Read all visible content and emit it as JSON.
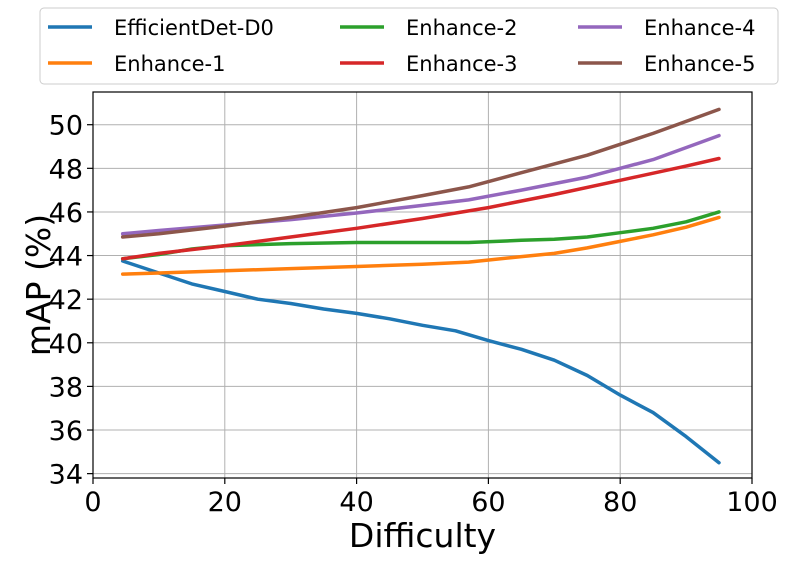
{
  "chart_data": {
    "type": "line",
    "title": "",
    "xlabel": "Difficulty",
    "ylabel": "mAP (%)",
    "xlim": [
      0,
      100
    ],
    "ylim": [
      33.8,
      51.5
    ],
    "xticks": [
      0,
      20,
      40,
      60,
      80,
      100
    ],
    "yticks": [
      34,
      36,
      38,
      40,
      42,
      44,
      46,
      48,
      50
    ],
    "grid": true,
    "legend_position": "top",
    "series": [
      {
        "name": "EfficientDet-D0",
        "color": "#1f77b4",
        "x": [
          4.5,
          10,
          15,
          20,
          25,
          30,
          35,
          40,
          45,
          50,
          55,
          60,
          65,
          70,
          75,
          80,
          85,
          90,
          95
        ],
        "y": [
          43.75,
          43.2,
          42.7,
          42.35,
          42.0,
          41.8,
          41.55,
          41.35,
          41.1,
          40.8,
          40.55,
          40.1,
          39.7,
          39.2,
          38.5,
          37.6,
          36.8,
          35.7,
          34.5
        ]
      },
      {
        "name": "Enhance-1",
        "color": "#ff7f0e",
        "x": [
          4.5,
          10,
          20,
          30,
          40,
          50,
          57,
          65,
          70,
          75,
          80,
          85,
          90,
          95
        ],
        "y": [
          43.15,
          43.2,
          43.3,
          43.4,
          43.5,
          43.6,
          43.7,
          43.95,
          44.1,
          44.35,
          44.65,
          44.95,
          45.3,
          45.75
        ]
      },
      {
        "name": "Enhance-2",
        "color": "#2ca02c",
        "x": [
          4.5,
          10,
          15,
          20,
          30,
          40,
          50,
          57,
          65,
          70,
          75,
          80,
          85,
          90,
          95
        ],
        "y": [
          43.85,
          44.05,
          44.3,
          44.45,
          44.55,
          44.6,
          44.6,
          44.6,
          44.7,
          44.75,
          44.85,
          45.05,
          45.25,
          45.55,
          46.0
        ]
      },
      {
        "name": "Enhance-3",
        "color": "#d62728",
        "x": [
          4.5,
          10,
          20,
          30,
          40,
          50,
          60,
          70,
          80,
          90,
          95
        ],
        "y": [
          43.85,
          44.1,
          44.45,
          44.85,
          45.25,
          45.7,
          46.2,
          46.8,
          47.45,
          48.1,
          48.45
        ]
      },
      {
        "name": "Enhance-4",
        "color": "#9467bd",
        "x": [
          4.5,
          10,
          20,
          30,
          40,
          50,
          57,
          65,
          75,
          80,
          85,
          90,
          95
        ],
        "y": [
          45.0,
          45.15,
          45.4,
          45.65,
          45.95,
          46.3,
          46.55,
          47.0,
          47.6,
          48.0,
          48.4,
          48.95,
          49.5
        ]
      },
      {
        "name": "Enhance-5",
        "color": "#8c564b",
        "x": [
          4.5,
          10,
          20,
          30,
          40,
          50,
          57,
          65,
          75,
          80,
          85,
          90,
          95
        ],
        "y": [
          44.85,
          45.0,
          45.35,
          45.75,
          46.2,
          46.75,
          47.15,
          47.8,
          48.6,
          49.1,
          49.6,
          50.15,
          50.7
        ]
      }
    ]
  }
}
